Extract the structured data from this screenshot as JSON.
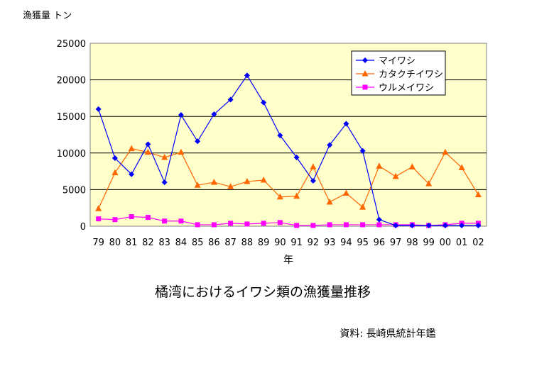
{
  "chart_data": {
    "type": "line",
    "title": "橘湾におけるイワシ類の漁獲量推移",
    "ylabel": "漁獲量 トン",
    "xlabel": "年",
    "source": "資料: 長崎県統計年鑑",
    "categories": [
      "79",
      "80",
      "81",
      "82",
      "83",
      "84",
      "85",
      "86",
      "87",
      "88",
      "89",
      "90",
      "91",
      "92",
      "93",
      "94",
      "95",
      "96",
      "97",
      "98",
      "99",
      "00",
      "01",
      "02"
    ],
    "ylim": [
      0,
      25000
    ],
    "yticks": [
      0,
      5000,
      10000,
      15000,
      20000,
      25000
    ],
    "ytick_labels": [
      "0",
      "5000",
      "10000",
      "15000",
      "20000",
      "25000"
    ],
    "grid": "horizontal",
    "legend_position": "top-right",
    "plot_background": "#ffffcc",
    "series": [
      {
        "name": "マイワシ",
        "color": "#0000ff",
        "marker": "diamond",
        "values": [
          16000,
          9300,
          7100,
          11200,
          6000,
          15200,
          11600,
          15300,
          17300,
          20600,
          16900,
          12400,
          9400,
          6200,
          11100,
          14000,
          10300,
          900,
          100,
          100,
          100,
          100,
          100,
          100
        ]
      },
      {
        "name": "カタクチイワシ",
        "color": "#ff6600",
        "marker": "triangle",
        "values": [
          2400,
          7300,
          10600,
          10100,
          9400,
          10100,
          5600,
          6000,
          5400,
          6100,
          6300,
          4000,
          4100,
          8100,
          3300,
          4500,
          2600,
          8200,
          6800,
          8100,
          5800,
          10100,
          8000,
          4300
        ]
      },
      {
        "name": "ウルメイワシ",
        "color": "#ff00ff",
        "marker": "square",
        "values": [
          1000,
          900,
          1300,
          1200,
          700,
          700,
          200,
          200,
          400,
          300,
          400,
          500,
          100,
          100,
          200,
          200,
          200,
          200,
          200,
          200,
          100,
          200,
          400,
          400
        ]
      }
    ]
  }
}
